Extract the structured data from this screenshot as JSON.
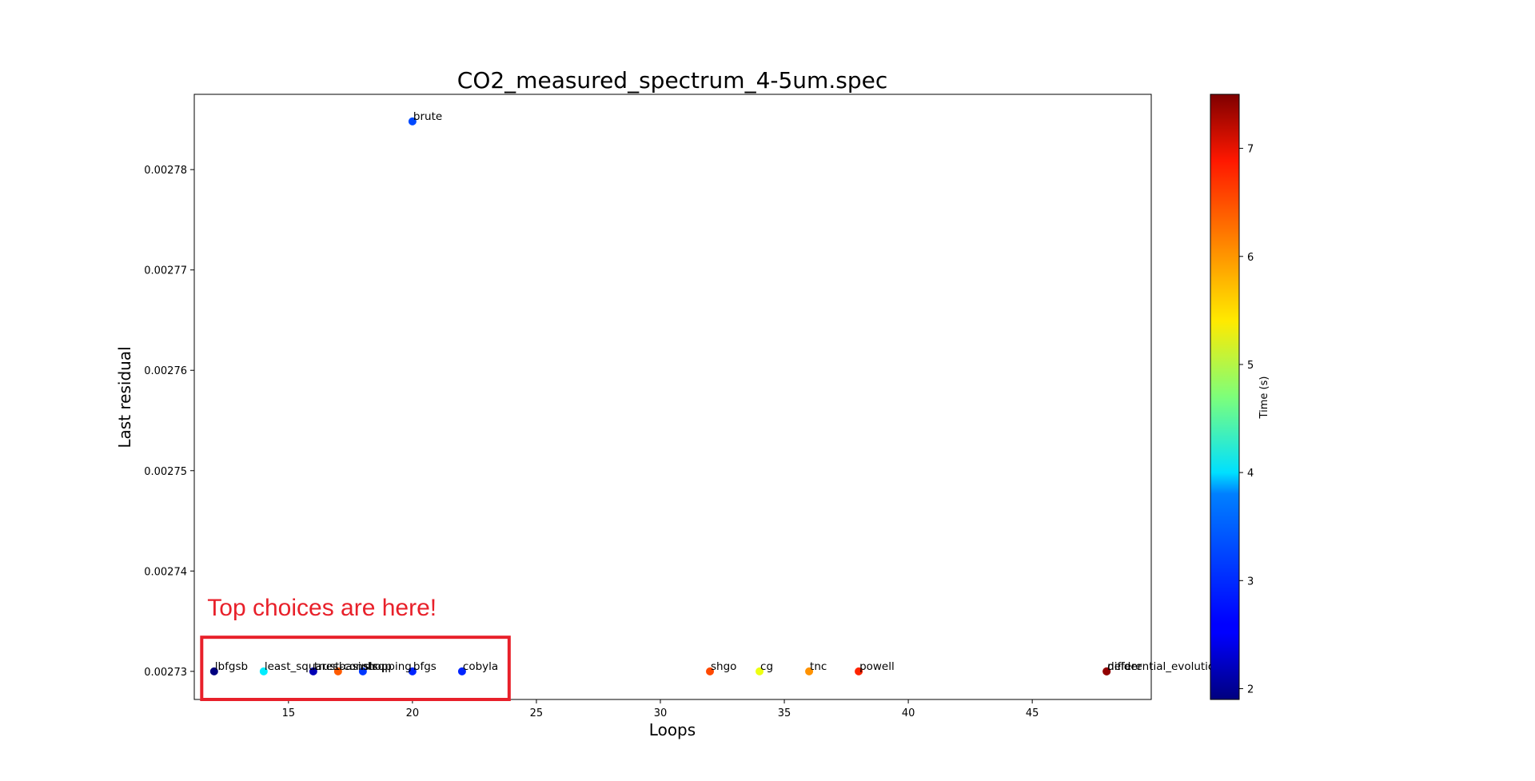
{
  "chart_data": {
    "type": "scatter",
    "title": "CO2_measured_spectrum_4-5um.spec",
    "xlabel": "Loops",
    "ylabel": "Last residual",
    "xlim": [
      11.2,
      49.8
    ],
    "ylim": [
      0.0027272,
      0.0027875
    ],
    "xticks": [
      15,
      20,
      25,
      30,
      35,
      40,
      45
    ],
    "yticks": [
      0.00273,
      0.00274,
      0.00275,
      0.00276,
      0.00277,
      0.00278
    ],
    "colorbar": {
      "label": "Time (s)",
      "range": [
        1.9,
        7.5
      ],
      "ticks": [
        2,
        3,
        4,
        5,
        6,
        7
      ],
      "colormap": "jet"
    },
    "points": [
      {
        "label": "brute",
        "x": 20,
        "y": 0.0027848,
        "time": 3.0
      },
      {
        "label": "lbfgsb",
        "x": 12,
        "y": 0.00273,
        "time": 1.9
      },
      {
        "label": "least_squares",
        "x": 14,
        "y": 0.00273,
        "time": 3.9
      },
      {
        "label": "trust-constr",
        "x": 16,
        "y": 0.00273,
        "time": 2.2
      },
      {
        "label": "basinhopping",
        "x": 17,
        "y": 0.00273,
        "time": 6.3
      },
      {
        "label": "slsqp",
        "x": 18,
        "y": 0.00273,
        "time": 2.9
      },
      {
        "label": "bfgs",
        "x": 20,
        "y": 0.00273,
        "time": 2.8
      },
      {
        "label": "cobyla",
        "x": 22,
        "y": 0.00273,
        "time": 2.8
      },
      {
        "label": "shgo",
        "x": 32,
        "y": 0.00273,
        "time": 6.4
      },
      {
        "label": "cg",
        "x": 34,
        "y": 0.00273,
        "time": 5.3
      },
      {
        "label": "tnc",
        "x": 36,
        "y": 0.00273,
        "time": 6.0
      },
      {
        "label": "powell",
        "x": 38,
        "y": 0.00273,
        "time": 6.6
      },
      {
        "label": "differential_evolution",
        "x": 48,
        "y": 0.00273,
        "time": 7.5
      },
      {
        "label": "nelder",
        "x": 48,
        "y": 0.00273,
        "time": 7.4
      }
    ],
    "annotation": {
      "text": "Top choices are here!",
      "color": "#e8202a",
      "box_xrange": [
        11.5,
        23.9
      ],
      "box_yrange": [
        0.0027272,
        0.0027334
      ]
    }
  }
}
